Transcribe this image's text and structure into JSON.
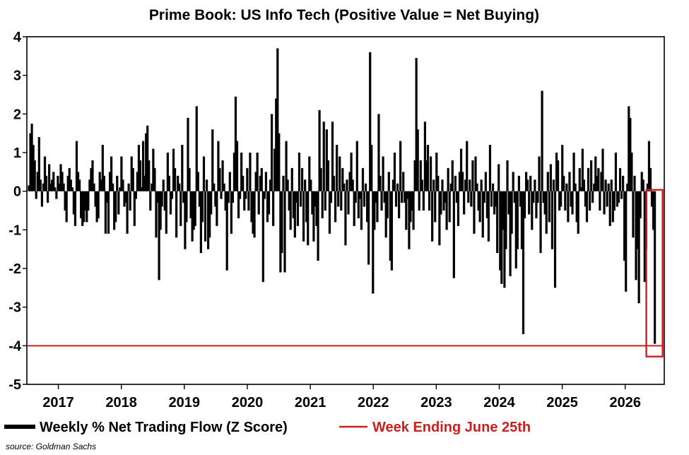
{
  "chart_data": {
    "type": "bar",
    "title": "Prime Book: US Info Tech (Positive Value = Net Buying)",
    "xlabel": "",
    "ylabel": "",
    "ylim": [
      -5,
      4
    ],
    "y_ticks": [
      4,
      3,
      2,
      1,
      0,
      -1,
      -2,
      -3,
      -4,
      -5
    ],
    "x_range": [
      2016.5,
      2026.62
    ],
    "x_ticks": [
      2017,
      2018,
      2019,
      2020,
      2021,
      2022,
      2023,
      2024,
      2025,
      2026
    ],
    "grid": false,
    "bar_color": "#000000",
    "series": [
      {
        "name": "Weekly % Net Trading Flow (Z Score)",
        "start": "2016-07-01",
        "interval": "weekly",
        "values": [
          0.15,
          1.5,
          1.75,
          1.2,
          0.8,
          -0.2,
          0.5,
          1.4,
          0.3,
          -0.4,
          0.2,
          0.9,
          0.4,
          -0.3,
          0.7,
          0.2,
          0.3,
          0.5,
          0.1,
          -0.2,
          0.4,
          0.2,
          0.7,
          0.5,
          0.2,
          -0.5,
          -0.8,
          0.4,
          0.6,
          0.3,
          0.1,
          -0.6,
          -0.9,
          1.3,
          0.5,
          0.3,
          -0.7,
          -0.9,
          -0.8,
          -0.5,
          -0.8,
          -0.5,
          0.3,
          0.6,
          0.8,
          0.2,
          -0.4,
          -0.8,
          -0.7,
          0.5,
          0.3,
          1.2,
          0.4,
          -1.1,
          -0.3,
          -1.1,
          0.5,
          0.9,
          0.2,
          -1.0,
          -0.8,
          0.4,
          -0.6,
          0.1,
          0.9,
          0.3,
          -0.4,
          -0.3,
          -1.1,
          0.2,
          -0.5,
          0.9,
          0.6,
          -0.9,
          -0.2,
          0.5,
          1.2,
          0.8,
          0.1,
          1.3,
          0.4,
          1.5,
          1.7,
          0.8,
          -0.5,
          0.2,
          1.1,
          0.6,
          -1.2,
          -0.3,
          -2.3,
          -1.0,
          -0.4,
          0.3,
          -0.5,
          -1.1,
          1.0,
          0.4,
          -0.6,
          -0.2,
          1.1,
          0.6,
          -1.2,
          0.4,
          0.2,
          -0.9,
          1.2,
          -0.3,
          -1.5,
          -0.8,
          1.9,
          0.6,
          -0.7,
          -1.3,
          -1.0,
          -0.9,
          2.2,
          0.5,
          -0.4,
          -1.6,
          -0.8,
          0.9,
          -1.3,
          0.3,
          -1.5,
          -1.2,
          -0.6,
          1.6,
          0.2,
          -0.4,
          -0.9,
          1.3,
          0.6,
          -0.2,
          0.8,
          0.2,
          -0.5,
          -2.05,
          -0.3,
          0.5,
          -1.1,
          -0.3,
          1.0,
          2.45,
          1.3,
          -0.7,
          -0.2,
          1.0,
          0.4,
          -0.5,
          -0.2,
          0.6,
          -0.5,
          1.0,
          -0.8,
          -1.1,
          -1.2,
          0.5,
          1.0,
          -0.6,
          0.4,
          0.6,
          -2.35,
          -0.2,
          0.5,
          -0.8,
          -0.6,
          0.3,
          2.0,
          -0.9,
          1.1,
          2.4,
          3.7,
          1.5,
          -2.1,
          -1.6,
          0.4,
          -2.1,
          1.3,
          0.3,
          -0.5,
          -1.0,
          0.6,
          -0.7,
          -1.2,
          -0.3,
          -0.9,
          1.0,
          -0.4,
          0.6,
          -1.3,
          0.3,
          -0.8,
          -1.4,
          0.9,
          0.3,
          -0.6,
          -1.3,
          -0.4,
          -0.9,
          -1.8,
          2.1,
          0.6,
          -0.7,
          1.8,
          -0.5,
          1.6,
          0.8,
          -1.1,
          -0.3,
          1.8,
          0.4,
          -0.8,
          1.2,
          -0.4,
          0.9,
          -0.5,
          0.6,
          0.2,
          -1.4,
          0.3,
          -0.6,
          0.5,
          1.0,
          0.3,
          -0.9,
          -0.3,
          1.3,
          -0.7,
          -0.2,
          -1.0,
          0.6,
          -0.4,
          0.2,
          -0.8,
          -1.9,
          3.6,
          1.2,
          -2.65,
          -1.0,
          -0.3,
          -0.8,
          2.0,
          0.4,
          -0.5,
          0.9,
          -0.3,
          -1.2,
          -0.7,
          0.5,
          -1.8,
          -2.05,
          0.3,
          1.0,
          -0.4,
          0.2,
          -0.7,
          1.3,
          -0.3,
          0.5,
          -0.3,
          -1.0,
          -0.2,
          -1.5,
          -0.8,
          -0.5,
          -1.0,
          0.8,
          3.45,
          1.6,
          -0.5,
          0.8,
          0.3,
          -0.5,
          1.8,
          0.8,
          1.2,
          -0.5,
          0.9,
          -1.3,
          0.3,
          -0.8,
          1.0,
          0.4,
          -1.4,
          -0.6,
          0.3,
          -0.5,
          -0.3,
          -1.0,
          0.6,
          -0.8,
          0.2,
          0.8,
          -2.25,
          0.4,
          -0.3,
          -0.9,
          0.5,
          1.1,
          0.5,
          -0.6,
          0.3,
          1.3,
          -0.3,
          0.3,
          -0.4,
          0.8,
          -1.1,
          0.9,
          0.2,
          -0.5,
          -0.8,
          0.3,
          -1.2,
          -0.3,
          0.5,
          -0.7,
          -1.3,
          1.2,
          -0.4,
          0.2,
          -0.6,
          -0.4,
          -1.6,
          0.7,
          -2.05,
          -2.4,
          -1.0,
          -2.5,
          -1.5,
          0.8,
          -0.6,
          -2.2,
          -1.1,
          0.5,
          -0.3,
          -2.0,
          -1.5,
          0.4,
          -0.4,
          -1.5,
          -3.7,
          -0.7,
          0.5,
          0.3,
          -0.6,
          0.4,
          -1.0,
          -0.3,
          0.3,
          -0.7,
          -0.3,
          0.9,
          -1.6,
          2.6,
          -0.3,
          -0.6,
          -1.1,
          0.5,
          -0.8,
          0.7,
          -1.5,
          0.3,
          -2.5,
          1.0,
          0.8,
          -0.5,
          -0.4,
          1.2,
          0.4,
          -0.5,
          0.2,
          -0.8,
          0.5,
          -0.4,
          -0.6,
          1.0,
          0.2,
          -0.8,
          -1.1,
          0.6,
          0.1,
          1.1,
          0.3,
          -0.4,
          -0.8,
          0.6,
          -0.5,
          0.8,
          -0.3,
          0.2,
          0.9,
          0.4,
          0.6,
          -0.5,
          0.5,
          1.1,
          -0.6,
          0.3,
          -0.4,
          0.2,
          -0.9,
          0.3,
          -0.8,
          -0.5,
          1.0,
          -0.4,
          -0.3,
          0.6,
          -0.2,
          0.4,
          -1.8,
          -2.6,
          0.2,
          2.2,
          1.9,
          1.0,
          -1.2,
          0.4,
          -2.3,
          -1.5,
          -2.9,
          -0.7,
          0.5,
          0.3,
          -2.35,
          -1.5,
          0.2,
          1.3,
          0.6,
          -0.4,
          -1.0,
          -3.95
        ]
      }
    ],
    "legend": [
      {
        "label": "Weekly % Net Trading Flow (Z Score)",
        "color": "#000000"
      },
      {
        "label": "Week Ending June 25th",
        "color": "#cc1f1f"
      }
    ],
    "legend_position": "bottom",
    "reference_line": {
      "y": -4,
      "color": "#cc1f1f"
    },
    "highlight_box_color": "#cc1f1f",
    "source": "source: Goldman Sachs"
  }
}
